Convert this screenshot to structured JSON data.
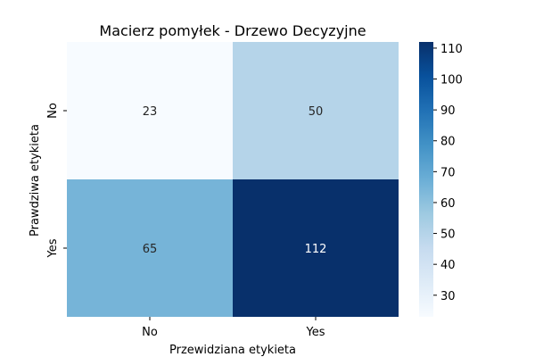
{
  "chart_data": {
    "type": "heatmap",
    "title": "Macierz pomyłek - Drzewo Decyzyjne",
    "xlabel": "Przewidziana etykieta",
    "ylabel": "Prawdziwa etykieta",
    "x_categories": [
      "No",
      "Yes"
    ],
    "y_categories": [
      "No",
      "Yes"
    ],
    "values": [
      [
        23,
        50
      ],
      [
        65,
        112
      ]
    ],
    "colormap": "Blues",
    "colorbar": {
      "min": 23,
      "max": 112,
      "ticks": [
        30,
        40,
        50,
        60,
        70,
        80,
        90,
        100,
        110
      ]
    }
  }
}
